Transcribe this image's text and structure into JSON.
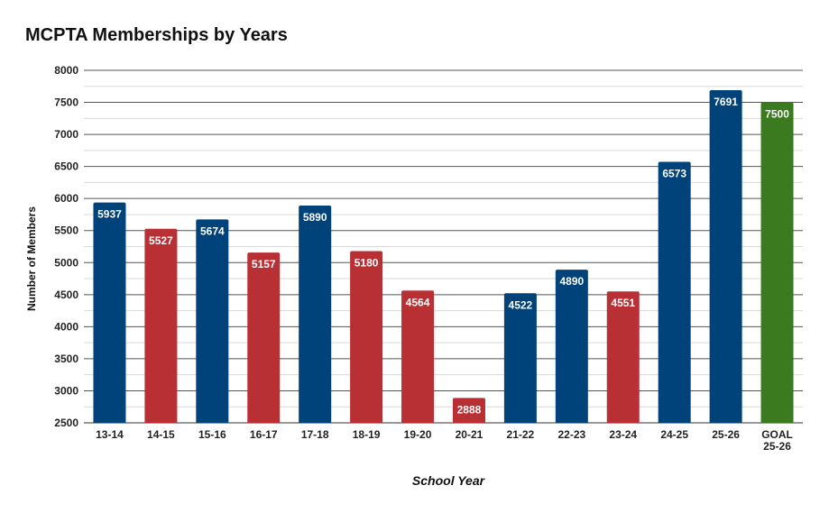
{
  "chart_data": {
    "type": "bar",
    "title": "MCPTA Memberships by Years",
    "xlabel": "School Year",
    "ylabel": "Number of Members",
    "ylim": [
      2500,
      8000
    ],
    "major_ticks": [
      2500,
      3000,
      3500,
      4000,
      4500,
      5000,
      5500,
      6000,
      6500,
      7000,
      7500,
      8000
    ],
    "minor_grid": true,
    "categories": [
      "13-14",
      "14-15",
      "15-16",
      "16-17",
      "17-18",
      "18-19",
      "19-20",
      "20-21",
      "21-22",
      "22-23",
      "23-24",
      "24-25",
      "25-26",
      "GOAL\n25-26"
    ],
    "values": [
      5937,
      5527,
      5674,
      5157,
      5890,
      5180,
      4564,
      2888,
      4522,
      4890,
      4551,
      6573,
      7691,
      7500
    ],
    "colors": [
      "#00427a",
      "#b83034",
      "#00427a",
      "#b83034",
      "#00427a",
      "#b83034",
      "#b83034",
      "#b83034",
      "#00427a",
      "#00427a",
      "#b83034",
      "#00427a",
      "#00427a",
      "#3b7a1e"
    ]
  }
}
